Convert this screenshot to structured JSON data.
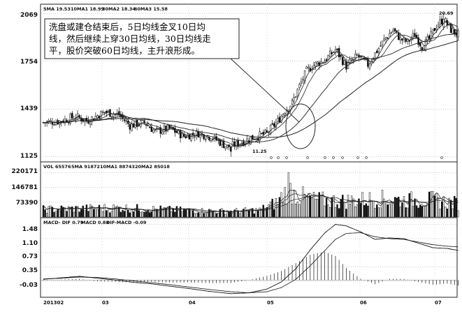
{
  "price_panel": {
    "header": {
      "ma5": "5MA 19.53",
      "ma10": "10MA1 18.99",
      "ma30": "30MA2 18.34",
      "ma60": "60MA3 15.58"
    },
    "y_labels": [
      "2069",
      "1754",
      "1439",
      "1125"
    ],
    "low_label": "11.25",
    "high_label": "20.69",
    "annotation_lines": [
      "洗盘或建仓结束后，5日均线金叉10日均",
      "线，然后继续上穿30日均线，30日均线走",
      "平，股价突破60日均线，主升浪形成。"
    ]
  },
  "volume_panel": {
    "header": {
      "vol": "VOL 65576",
      "ma5": "5MA 91872",
      "ma10": "10MA1 88743",
      "ma20": "20MA2 85018"
    },
    "y_labels": [
      "220171",
      "146781",
      "73390"
    ]
  },
  "macd_panel": {
    "header": {
      "dif": "MACD- DIF 0.79",
      "macd": "MACD 0.88",
      "diff": "DIF-MACD -0.09"
    },
    "y_labels": [
      "1.48",
      "1.10",
      "0.73",
      "0.35",
      "-0.03"
    ]
  },
  "x_axis": {
    "labels": [
      "201302",
      "03",
      "04",
      "05",
      "06",
      "07"
    ]
  },
  "chart_data": [
    {
      "type": "candlestick",
      "title": "",
      "xlabel": "",
      "ylabel": "",
      "x_categories": [
        "201302",
        "03",
        "04",
        "05",
        "06",
        "07"
      ],
      "yticks": [
        11.25,
        14.39,
        17.54,
        20.69
      ],
      "ylim": [
        11.0,
        21.2
      ],
      "anchors": [
        [
          0,
          13.5
        ],
        [
          10,
          13.6
        ],
        [
          18,
          13.9
        ],
        [
          24,
          13.6
        ],
        [
          34,
          14.2
        ],
        [
          42,
          14.0
        ],
        [
          48,
          13.3
        ],
        [
          56,
          13.5
        ],
        [
          62,
          12.9
        ],
        [
          70,
          13.1
        ],
        [
          78,
          12.6
        ],
        [
          86,
          12.8
        ],
        [
          94,
          12.5
        ],
        [
          102,
          11.9
        ],
        [
          108,
          12.1
        ],
        [
          116,
          12.5
        ],
        [
          124,
          12.8
        ],
        [
          130,
          13.6
        ],
        [
          134,
          14.3
        ],
        [
          138,
          14.8
        ],
        [
          142,
          15.9
        ],
        [
          146,
          16.9
        ],
        [
          150,
          17.3
        ],
        [
          156,
          17.6
        ],
        [
          162,
          18.3
        ],
        [
          168,
          17.2
        ],
        [
          174,
          17.9
        ],
        [
          180,
          17.3
        ],
        [
          186,
          18.4
        ],
        [
          190,
          19.1
        ],
        [
          194,
          19.6
        ],
        [
          198,
          19.0
        ],
        [
          202,
          18.8
        ],
        [
          206,
          19.3
        ],
        [
          210,
          18.5
        ],
        [
          214,
          19.0
        ],
        [
          218,
          19.9
        ],
        [
          222,
          20.3
        ],
        [
          226,
          19.6
        ],
        [
          230,
          19.3
        ]
      ],
      "moving_averages": [
        {
          "name": "5MA",
          "period": 5
        },
        {
          "name": "10MA1",
          "period": 10
        },
        {
          "name": "30MA2",
          "period": 30
        },
        {
          "name": "60MA3",
          "period": 60
        }
      ]
    },
    {
      "type": "bar",
      "title": "",
      "yticks": [
        73390,
        146781,
        220171
      ],
      "ylim": [
        0,
        232000
      ],
      "anchors": [
        [
          0,
          40000
        ],
        [
          40,
          48000
        ],
        [
          90,
          32000
        ],
        [
          104,
          30000
        ],
        [
          120,
          36000
        ],
        [
          130,
          78000
        ],
        [
          136,
          150000
        ],
        [
          140,
          115000
        ],
        [
          150,
          90000
        ],
        [
          165,
          82000
        ],
        [
          185,
          95000
        ],
        [
          200,
          88000
        ],
        [
          215,
          90000
        ],
        [
          230,
          70000
        ]
      ]
    },
    {
      "type": "line",
      "title": "",
      "series": [
        {
          "name": "DIF",
          "anchors": [
            [
              0,
              0.02
            ],
            [
              10,
              0.06
            ],
            [
              20,
              0.1
            ],
            [
              30,
              0.05
            ],
            [
              40,
              0.0
            ],
            [
              50,
              -0.06
            ],
            [
              60,
              -0.1
            ],
            [
              70,
              -0.16
            ],
            [
              80,
              -0.22
            ],
            [
              92,
              -0.3
            ],
            [
              104,
              -0.36
            ],
            [
              114,
              -0.34
            ],
            [
              124,
              -0.24
            ],
            [
              132,
              -0.05
            ],
            [
              140,
              0.3
            ],
            [
              148,
              0.8
            ],
            [
              156,
              1.25
            ],
            [
              162,
              1.48
            ],
            [
              168,
              1.44
            ],
            [
              176,
              1.28
            ],
            [
              184,
              1.08
            ],
            [
              192,
              1.12
            ],
            [
              200,
              1.1
            ],
            [
              208,
              0.98
            ],
            [
              216,
              0.86
            ],
            [
              224,
              0.84
            ],
            [
              230,
              0.79
            ]
          ]
        },
        {
          "name": "MACD",
          "anchors": [
            [
              0,
              0.03
            ],
            [
              10,
              0.05
            ],
            [
              20,
              0.08
            ],
            [
              30,
              0.07
            ],
            [
              40,
              0.03
            ],
            [
              50,
              -0.02
            ],
            [
              60,
              -0.07
            ],
            [
              70,
              -0.12
            ],
            [
              80,
              -0.18
            ],
            [
              92,
              -0.25
            ],
            [
              104,
              -0.31
            ],
            [
              114,
              -0.34
            ],
            [
              124,
              -0.31
            ],
            [
              132,
              -0.2
            ],
            [
              140,
              0.02
            ],
            [
              148,
              0.38
            ],
            [
              156,
              0.78
            ],
            [
              162,
              1.08
            ],
            [
              168,
              1.24
            ],
            [
              176,
              1.26
            ],
            [
              184,
              1.15
            ],
            [
              192,
              1.1
            ],
            [
              200,
              1.08
            ],
            [
              208,
              1.01
            ],
            [
              216,
              0.94
            ],
            [
              224,
              0.9
            ],
            [
              230,
              0.88
            ]
          ]
        }
      ],
      "yticks": [
        -0.03,
        0.35,
        0.73,
        1.1,
        1.48
      ],
      "ylim": [
        -0.42,
        1.62
      ]
    }
  ]
}
